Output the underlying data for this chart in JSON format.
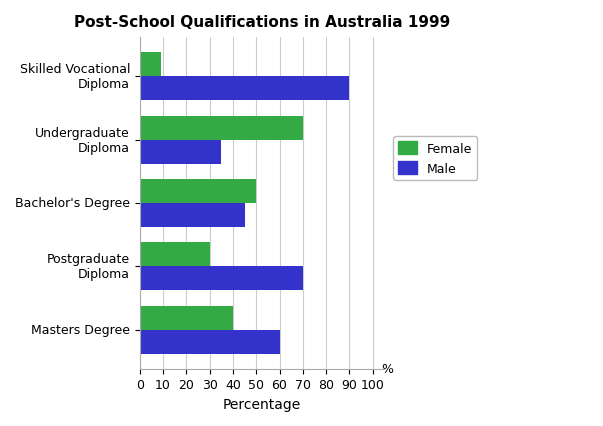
{
  "title": "Post-School Qualifications in Australia 1999",
  "categories": [
    "Skilled Vocational\nDiploma",
    "Undergraduate\nDiploma",
    "Bachelor's Degree",
    "Postgraduate\nDiploma",
    "Masters Degree"
  ],
  "female_values": [
    9,
    70,
    50,
    30,
    40
  ],
  "male_values": [
    90,
    35,
    45,
    70,
    60
  ],
  "female_color": "#33aa44",
  "male_color": "#3333cc",
  "xlabel": "Percentage",
  "xlim": [
    0,
    105
  ],
  "xticks": [
    0,
    10,
    20,
    30,
    40,
    50,
    60,
    70,
    80,
    90,
    100
  ],
  "xtick_labels": [
    "0",
    "10",
    "20",
    "30",
    "40",
    "50",
    "60",
    "70",
    "80",
    "90",
    "100"
  ],
  "bar_height": 0.38,
  "background_color": "#ffffff",
  "legend_labels": [
    "Female",
    "Male"
  ],
  "percent_label": "%",
  "title_fontsize": 11,
  "axis_label_fontsize": 10,
  "tick_fontsize": 9,
  "legend_fontsize": 9
}
